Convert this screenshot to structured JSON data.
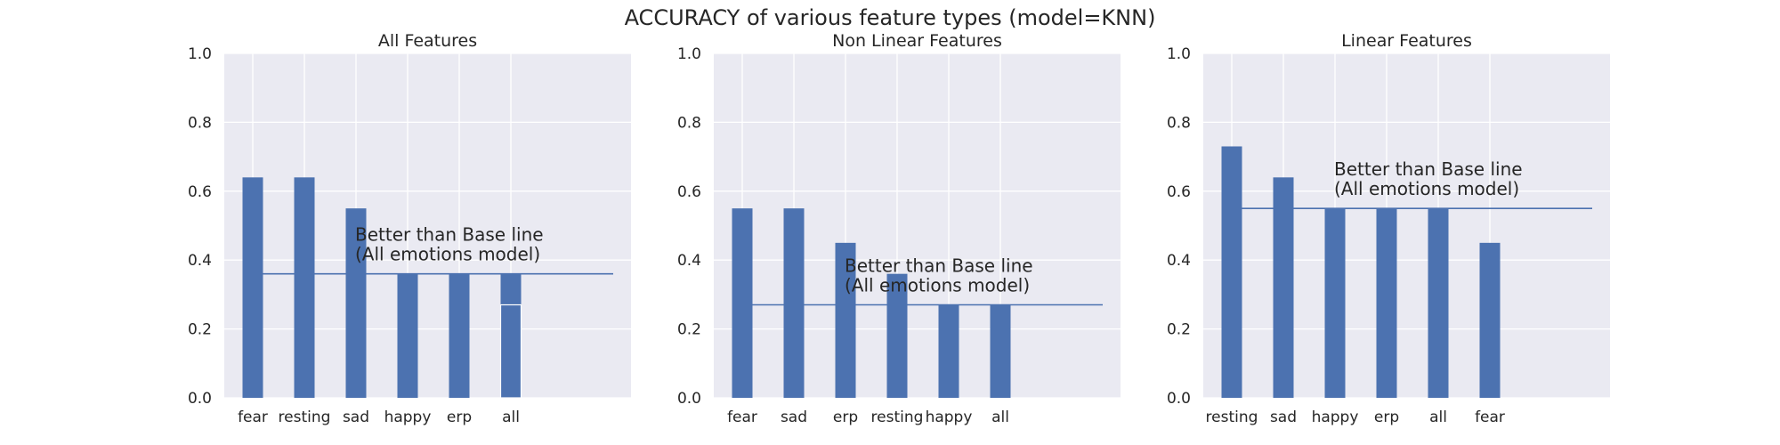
{
  "figure_title": "ACCURACY of various feature types (model=KNN)",
  "colors": {
    "bar": "#4C72B0",
    "baseline": "#4C72B0",
    "plot_bg": "#EAEAF2",
    "grid": "#FFFFFF",
    "text": "#262626"
  },
  "chart_data": [
    {
      "type": "bar",
      "title": "All Features",
      "categories": [
        "fear",
        "resting",
        "sad",
        "happy",
        "erp",
        "all"
      ],
      "values": [
        0.64,
        0.64,
        0.55,
        0.36,
        0.36,
        0.36
      ],
      "overlay_values": [
        null,
        null,
        null,
        null,
        null,
        0.27
      ],
      "baseline": 0.36,
      "ylim": [
        0,
        1.0
      ],
      "yticks": [
        "0.0",
        "0.2",
        "0.4",
        "0.6",
        "0.8",
        "1.0"
      ],
      "annotation": [
        "Better than Base line",
        "(All emotions model)"
      ],
      "grid": true
    },
    {
      "type": "bar",
      "title": "Non Linear Features",
      "categories": [
        "fear",
        "sad",
        "erp",
        "resting",
        "happy",
        "all"
      ],
      "values": [
        0.55,
        0.55,
        0.45,
        0.36,
        0.27,
        0.27
      ],
      "baseline": 0.27,
      "ylim": [
        0,
        1.0
      ],
      "yticks": [
        "0.0",
        "0.2",
        "0.4",
        "0.6",
        "0.8",
        "1.0"
      ],
      "annotation": [
        "Better than Base line",
        "(All emotions model)"
      ],
      "grid": true
    },
    {
      "type": "bar",
      "title": "Linear Features",
      "categories": [
        "resting",
        "sad",
        "happy",
        "erp",
        "all",
        "fear"
      ],
      "values": [
        0.73,
        0.64,
        0.55,
        0.55,
        0.55,
        0.45
      ],
      "baseline": 0.55,
      "ylim": [
        0,
        1.0
      ],
      "yticks": [
        "0.0",
        "0.2",
        "0.4",
        "0.6",
        "0.8",
        "1.0"
      ],
      "annotation": [
        "Better than Base line",
        "(All emotions model)"
      ],
      "grid": true
    }
  ]
}
